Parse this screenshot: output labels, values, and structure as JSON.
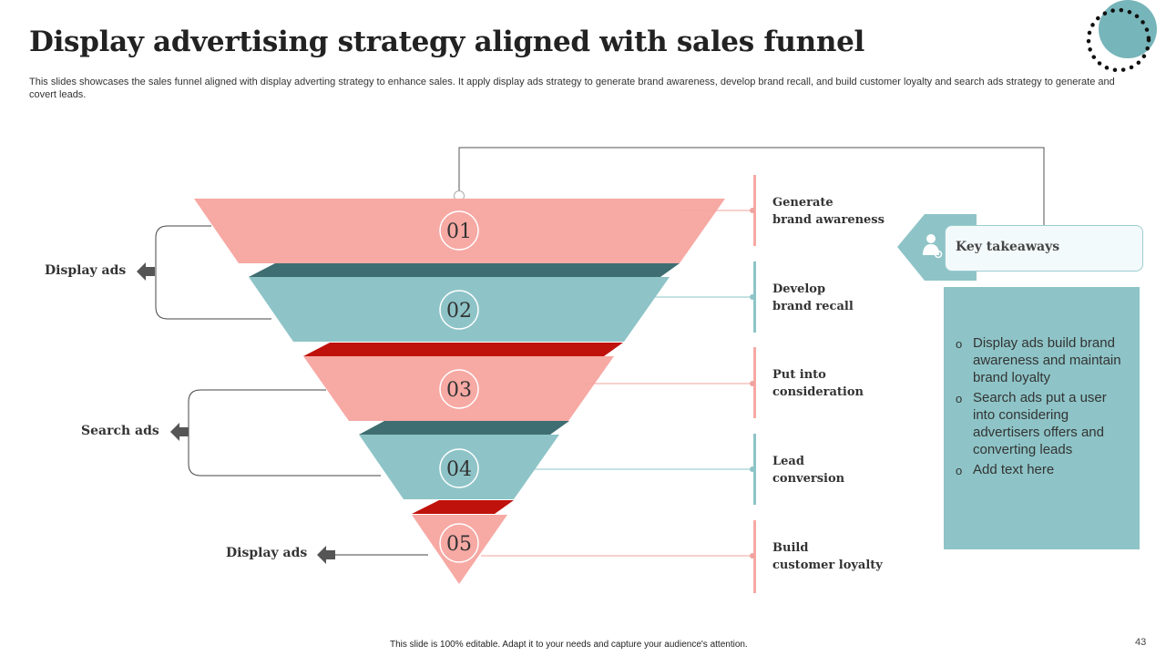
{
  "title": "Display advertising strategy aligned with sales funnel",
  "subtitle": "This slides showcases the sales funnel aligned with display adverting strategy to enhance sales. It apply display ads strategy to generate brand awareness, develop brand recall, and build customer loyalty and search ads strategy to generate and covert leads.",
  "colors": {
    "pink": "#f7a9a4",
    "teal": "#8ec4c7",
    "dark_teal": "#3e6e72",
    "red": "#c0120c",
    "panel": "#8ec4c7"
  },
  "funnel": {
    "stages": [
      {
        "number": "01",
        "label_line1": "Generate",
        "label_line2": "brand awareness",
        "color": "pink"
      },
      {
        "number": "02",
        "label_line1": "Develop",
        "label_line2": "brand recall",
        "color": "teal"
      },
      {
        "number": "03",
        "label_line1": "Put into",
        "label_line2": "consideration",
        "color": "pink"
      },
      {
        "number": "04",
        "label_line1": "Lead",
        "label_line2": "conversion",
        "color": "teal"
      },
      {
        "number": "05",
        "label_line1": "Build",
        "label_line2": "customer loyalty",
        "color": "pink"
      }
    ]
  },
  "groups": [
    {
      "label": "Display ads",
      "stages": [
        "01",
        "02"
      ]
    },
    {
      "label": "Search ads",
      "stages": [
        "03",
        "04"
      ]
    },
    {
      "label": "Display ads",
      "stages": [
        "05"
      ]
    }
  ],
  "key_takeaways": {
    "title": "Key takeaways",
    "icon": "person-key-icon",
    "items": [
      "Display ads build brand awareness and maintain brand loyalty",
      "Search ads put a user into considering advertisers offers and converting leads",
      "Add text here"
    ]
  },
  "footer": "This slide is 100% editable. Adapt it to your needs and capture your audience's attention.",
  "page_number": "43"
}
